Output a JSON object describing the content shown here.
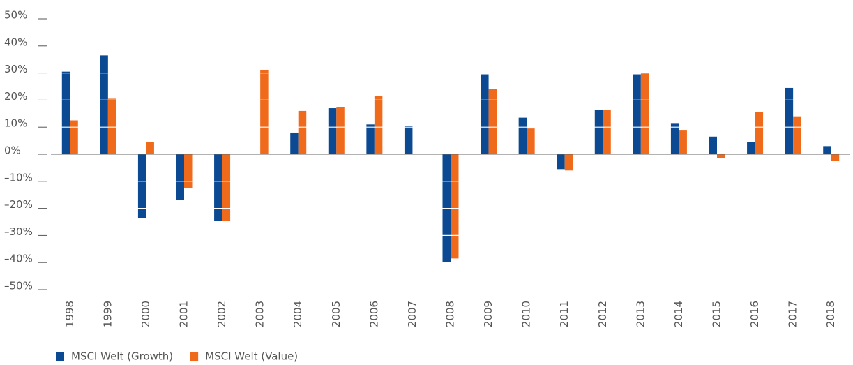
{
  "chart_data": {
    "type": "bar",
    "categories": [
      "1998",
      "1999",
      "2000",
      "2001",
      "2002",
      "2003",
      "2004",
      "2005",
      "2006",
      "2007",
      "2008",
      "2009",
      "2010",
      "2011",
      "2012",
      "2013",
      "2014",
      "2015",
      "2016",
      "2017",
      "2018"
    ],
    "series": [
      {
        "name": "MSCI Welt (Growth)",
        "color": "#0b4a93",
        "values": [
          30.5,
          36.5,
          -23.5,
          -17,
          -24.5,
          null,
          8,
          17,
          11,
          10.5,
          -40,
          29.5,
          13.5,
          -5.5,
          16.5,
          29.5,
          11.5,
          6.5,
          4.5,
          24.5,
          3
        ]
      },
      {
        "name": "MSCI Welt (Value)",
        "color": "#f06a1c",
        "values": [
          12.5,
          20.5,
          4.5,
          -12.5,
          -24.5,
          31,
          16,
          17.5,
          21.5,
          null,
          -38.5,
          24,
          9.5,
          -6,
          16.5,
          30,
          9,
          -1.5,
          15.5,
          14,
          -2.5
        ]
      }
    ],
    "ylim": [
      -50,
      50
    ],
    "yticks": [
      {
        "value": -50,
        "label": "–50%"
      },
      {
        "value": -40,
        "label": "–40%"
      },
      {
        "value": -30,
        "label": "–30%"
      },
      {
        "value": -20,
        "label": "–20%"
      },
      {
        "value": -10,
        "label": "–10%"
      },
      {
        "value": 0,
        "label": "0%"
      },
      {
        "value": 10,
        "label": "10%"
      },
      {
        "value": 20,
        "label": "20%"
      },
      {
        "value": 30,
        "label": "30%"
      },
      {
        "value": 40,
        "label": "40%"
      },
      {
        "value": 50,
        "label": "50%"
      }
    ],
    "grid": true
  }
}
